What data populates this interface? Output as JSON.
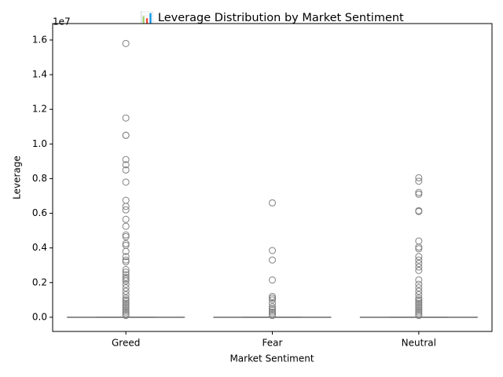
{
  "chart_data": {
    "type": "box",
    "title": "📊 Leverage Distribution by Market Sentiment",
    "x_label": "Market Sentiment",
    "y_label": "Leverage",
    "y_offset_label": "1e7",
    "color": "#808080",
    "categories": [
      "Greed",
      "Fear",
      "Neutral"
    ],
    "boxes": [
      {
        "whislo": 0,
        "q1": 0,
        "med": 0,
        "q3": 0.0005,
        "whishi": 0.001,
        "fliers": [
          1.58,
          1.15,
          1.05,
          1.05,
          0.91,
          0.88,
          0.85,
          0.78,
          0.675,
          0.64,
          0.62,
          0.565,
          0.525,
          0.475,
          0.465,
          0.425,
          0.415,
          0.38,
          0.35,
          0.33,
          0.32,
          0.275,
          0.26,
          0.245,
          0.23,
          0.22,
          0.21,
          0.19,
          0.17,
          0.15,
          0.13,
          0.11,
          0.1,
          0.09,
          0.08,
          0.07,
          0.06,
          0.05,
          0.04,
          0.03,
          0.02,
          0.01
        ]
      },
      {
        "whislo": 0,
        "q1": 0,
        "med": 0,
        "q3": 0.0005,
        "whishi": 0.001,
        "fliers": [
          0.66,
          0.385,
          0.33,
          0.215,
          0.12,
          0.11,
          0.1,
          0.08,
          0.06,
          0.05,
          0.04,
          0.03,
          0.02,
          0.01
        ]
      },
      {
        "whislo": 0,
        "q1": 0,
        "med": 0,
        "q3": 0.0005,
        "whishi": 0.001,
        "fliers": [
          0.805,
          0.785,
          0.72,
          0.71,
          0.615,
          0.61,
          0.44,
          0.405,
          0.395,
          0.35,
          0.33,
          0.31,
          0.29,
          0.27,
          0.215,
          0.19,
          0.17,
          0.15,
          0.13,
          0.11,
          0.1,
          0.09,
          0.08,
          0.07,
          0.06,
          0.05,
          0.04,
          0.03,
          0.02,
          0.01
        ]
      }
    ],
    "ylim": [
      -0.082,
      1.695
    ],
    "yticks": [
      {
        "value": 0,
        "label": "0.0"
      },
      0.2,
      0.4,
      0.6,
      0.8,
      {
        "value": 1,
        "label": "1.0"
      },
      1.2,
      1.4,
      1.6
    ]
  }
}
